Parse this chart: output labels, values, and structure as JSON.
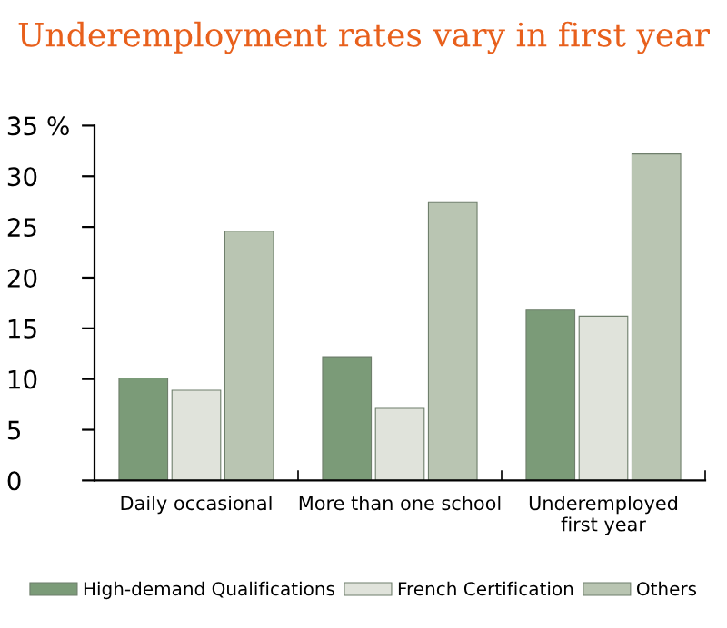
{
  "chart_data": {
    "type": "bar",
    "title": "Underemployment rates vary in first year",
    "categories": [
      "Daily occasional",
      "More than one school",
      "Underemployed\nfirst year"
    ],
    "series": [
      {
        "name": "High-demand Qualifications",
        "color": "#7b9b78",
        "values": [
          10.1,
          12.2,
          16.8
        ]
      },
      {
        "name": "French Certification",
        "color": "#e0e3db",
        "values": [
          8.9,
          7.1,
          16.2
        ]
      },
      {
        "name": "Others",
        "color": "#b9c5b2",
        "values": [
          24.6,
          27.4,
          32.2
        ]
      }
    ],
    "ylim": [
      0,
      35
    ],
    "yticks": [
      0,
      5,
      10,
      15,
      20,
      25,
      30,
      {
        "value": 35,
        "label": "35 %"
      }
    ],
    "grid": false,
    "legend": "bottom"
  }
}
